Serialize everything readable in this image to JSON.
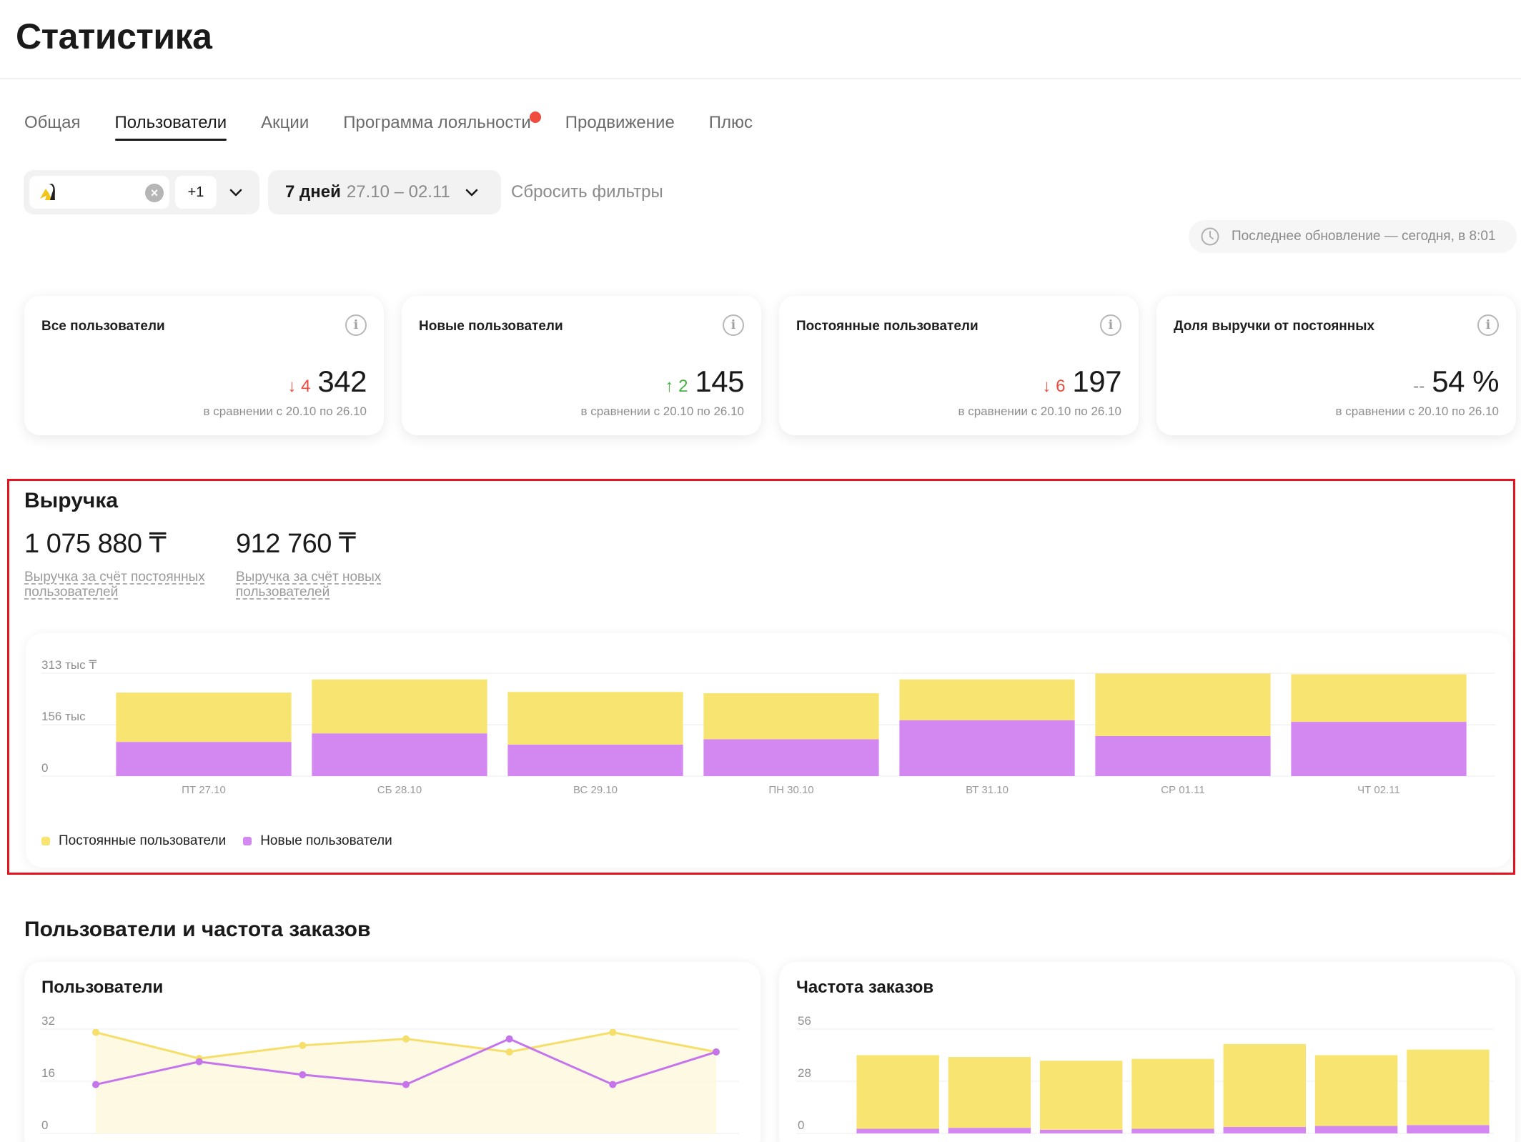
{
  "page": {
    "title": "Статистика"
  },
  "tabs": [
    {
      "label": "Общая",
      "active": false
    },
    {
      "label": "Пользователи",
      "active": true
    },
    {
      "label": "Акции",
      "active": false
    },
    {
      "label": "Программа лояльности",
      "active": false,
      "dot": true
    },
    {
      "label": "Продвижение",
      "active": false
    },
    {
      "label": "Плюс",
      "active": false
    }
  ],
  "filters": {
    "store_extra": "+1",
    "period_label": "7 дней",
    "period_range": "27.10 – 02.11",
    "reset_label": "Сбросить фильтры"
  },
  "last_update": "Последнее обновление — сегодня, в 8:01",
  "kpis": [
    {
      "title": "Все пользователи",
      "delta": "4",
      "direction": "down",
      "value": "342",
      "compare": "в сравнении с 20.10 по 26.10"
    },
    {
      "title": "Новые пользователи",
      "delta": "2",
      "direction": "up",
      "value": "145",
      "compare": "в сравнении с 20.10 по 26.10"
    },
    {
      "title": "Постоянные пользователи",
      "delta": "6",
      "direction": "down",
      "value": "197",
      "compare": "в сравнении с 20.10 по 26.10"
    },
    {
      "title": "Доля выручки от постоянных",
      "delta": "--",
      "direction": "flat",
      "value": "54 %",
      "compare": "в сравнении с 20.10 по 26.10"
    }
  ],
  "revenue": {
    "title": "Выручка",
    "metrics": [
      {
        "value": "1 075 880 ₸",
        "label": "Выручка за счёт постоянных пользователей"
      },
      {
        "value": "912 760 ₸",
        "label": "Выручка за счёт новых пользователей"
      }
    ]
  },
  "colors": {
    "regular": "#f8e471",
    "new": "#d387f0",
    "new_line": "#c674ec",
    "regular_line": "#f5df6a"
  },
  "chart_data": [
    {
      "type": "bar",
      "stacked": true,
      "y_tick_labels": [
        "0",
        "156 тыс",
        "313 тыс ₸"
      ],
      "y_ticks": [
        0,
        156000,
        313000
      ],
      "ylim": [
        0,
        313000
      ],
      "categories": [
        "ПТ 27.10",
        "СБ 28.10",
        "ВС 29.10",
        "ПН 30.10",
        "ВТ 31.10",
        "СР 01.11",
        "ЧТ 02.11"
      ],
      "series": [
        {
          "name": "Новые пользователи",
          "values": [
            104000,
            130000,
            96000,
            112000,
            170000,
            122000,
            165000
          ]
        },
        {
          "name": "Постоянные пользователи",
          "values": [
            150000,
            164000,
            160000,
            140000,
            124000,
            190000,
            145000
          ]
        }
      ],
      "legend": "bottom-left",
      "grid": true
    },
    {
      "type": "line",
      "title": "Пользователи",
      "y_ticks": [
        0,
        16,
        32
      ],
      "ylim": [
        0,
        32
      ],
      "x": [
        1,
        2,
        3,
        4,
        5,
        6,
        7
      ],
      "series": [
        {
          "name": "Постоянные пользователи",
          "values": [
            31,
            23,
            27,
            29,
            25,
            31,
            25
          ]
        },
        {
          "name": "Новые пользователи",
          "values": [
            15,
            22,
            18,
            15,
            29,
            15,
            25
          ]
        }
      ],
      "grid": true
    },
    {
      "type": "bar",
      "stacked": true,
      "title": "Частота заказов",
      "y_ticks": [
        0,
        28,
        56
      ],
      "ylim": [
        0,
        56
      ],
      "categories": [
        "",
        "",
        "",
        "",
        "",
        "",
        ""
      ],
      "series": [
        {
          "name": "Новые пользователи",
          "values": [
            2.5,
            3,
            2,
            2.5,
            3.5,
            4,
            4.5
          ]
        },
        {
          "name": "Постоянные пользователи",
          "values": [
            39.5,
            38,
            37,
            37.5,
            44.5,
            38,
            40.5
          ]
        }
      ],
      "grid": true
    }
  ]
}
